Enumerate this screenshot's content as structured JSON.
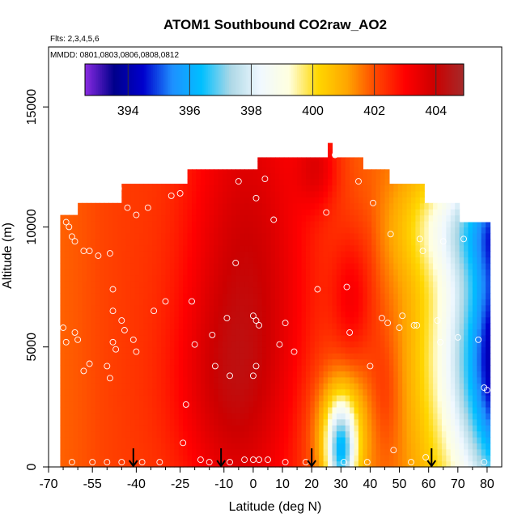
{
  "chart_data": {
    "type": "heatmap",
    "title": "ATOM1 Southbound CO2raw_AO2",
    "subtitle_flights": "Flts: 2,3,4,5,6",
    "subtitle_dates": "MMDD: 0801,0803,0806,0808,0812",
    "xlabel": "Latitude (deg N)",
    "ylabel": "Altitude (m)",
    "xlim": [
      -70,
      85
    ],
    "ylim": [
      0,
      17500
    ],
    "x_ticks": [
      -70,
      -55,
      -40,
      -25,
      -10,
      0,
      10,
      20,
      30,
      40,
      50,
      60,
      70,
      80
    ],
    "x_tick_labels": [
      "-70",
      "-55",
      "-40",
      "-25",
      "-10",
      "0",
      "10",
      "20",
      "30",
      "40",
      "50",
      "60",
      "70",
      "80"
    ],
    "x_minor_ticks": [
      -65,
      -60,
      -50,
      -45,
      -35,
      -30,
      -20,
      -15,
      -5,
      5,
      15,
      25,
      35,
      45,
      55,
      65,
      75
    ],
    "y_ticks": [
      0,
      5000,
      10000,
      15000
    ],
    "y_tick_labels": [
      "0",
      "5000",
      "10000",
      "15000"
    ],
    "colorbar": {
      "range": [
        392.6,
        404.9
      ],
      "ticks": [
        394,
        396,
        398,
        400,
        402,
        404
      ],
      "tick_labels": [
        "394",
        "396",
        "398",
        "400",
        "402",
        "404"
      ],
      "colors": [
        "#8a2be2",
        "#00008b",
        "#0000cd",
        "#1e90ff",
        "#00bfff",
        "#add8e6",
        "#f0f8ff",
        "#ffffe0",
        "#ffd700",
        "#ffa500",
        "#ff4500",
        "#ff0000",
        "#cc0000",
        "#a52a2a"
      ]
    },
    "arrows_latitude": [
      -41,
      -11,
      20,
      61
    ],
    "field": {
      "description": "CO2 (ppm) as a function of latitude and altitude",
      "domain_lat": [
        -66,
        80
      ],
      "domain_alt": [
        0,
        13500
      ],
      "ceiling_points": [
        [
          -66,
          10500
        ],
        [
          -60,
          10500
        ],
        [
          -60,
          11000
        ],
        [
          -45,
          11000
        ],
        [
          -45,
          11800
        ],
        [
          -22,
          11800
        ],
        [
          -22,
          12400
        ],
        [
          2,
          12400
        ],
        [
          2,
          12900
        ],
        [
          26,
          12900
        ],
        [
          26,
          13500
        ],
        [
          27,
          13500
        ],
        [
          27,
          12900
        ],
        [
          37,
          12900
        ],
        [
          37,
          12400
        ],
        [
          46,
          12400
        ],
        [
          46,
          11800
        ],
        [
          58,
          11800
        ],
        [
          58,
          11000
        ],
        [
          71,
          11000
        ],
        [
          71,
          10200
        ],
        [
          79,
          10200
        ]
      ]
    },
    "sample_points": [
      [
        -64,
        10200
      ],
      [
        -63,
        10000
      ],
      [
        -62,
        9600
      ],
      [
        -61,
        9400
      ],
      [
        -58,
        9000
      ],
      [
        -56,
        9000
      ],
      [
        -53,
        8800
      ],
      [
        -49,
        8900
      ],
      [
        -48,
        7400
      ],
      [
        -48,
        6500
      ],
      [
        -48,
        5200
      ],
      [
        -47,
        4900
      ],
      [
        -45,
        6100
      ],
      [
        -44,
        5700
      ],
      [
        -41,
        5300
      ],
      [
        -40,
        4800
      ],
      [
        -49,
        3700
      ],
      [
        -50,
        4200
      ],
      [
        -56,
        4300
      ],
      [
        -58,
        4000
      ],
      [
        -60,
        5300
      ],
      [
        -64,
        5200
      ],
      [
        -65,
        5800
      ],
      [
        -61,
        5600
      ],
      [
        -43,
        10800
      ],
      [
        -40,
        10500
      ],
      [
        -36,
        10800
      ],
      [
        -28,
        11300
      ],
      [
        -25,
        11400
      ],
      [
        -46,
        11600
      ],
      [
        -30,
        6900
      ],
      [
        -34,
        6500
      ],
      [
        -21,
        6900
      ],
      [
        -20,
        5100
      ],
      [
        -14,
        5500
      ],
      [
        -13,
        4200
      ],
      [
        -9,
        6200
      ],
      [
        -8,
        3800
      ],
      [
        -6,
        8500
      ],
      [
        -5,
        11900
      ],
      [
        0,
        6300
      ],
      [
        1,
        6100
      ],
      [
        2,
        5900
      ],
      [
        1,
        4200
      ],
      [
        0,
        3800
      ],
      [
        1,
        11200
      ],
      [
        4,
        12000
      ],
      [
        7,
        10300
      ],
      [
        9,
        5100
      ],
      [
        11,
        6000
      ],
      [
        14,
        4800
      ],
      [
        22,
        7400
      ],
      [
        25,
        10600
      ],
      [
        28,
        13000
      ],
      [
        32,
        7500
      ],
      [
        33,
        5600
      ],
      [
        36,
        11900
      ],
      [
        40,
        4200
      ],
      [
        41,
        11000
      ],
      [
        44,
        6200
      ],
      [
        46,
        6000
      ],
      [
        47,
        9700
      ],
      [
        50,
        5800
      ],
      [
        51,
        6300
      ],
      [
        55,
        5900
      ],
      [
        56,
        5900
      ],
      [
        57,
        9500
      ],
      [
        58,
        9000
      ],
      [
        63,
        6100
      ],
      [
        64,
        5200
      ],
      [
        65,
        9400
      ],
      [
        70,
        5400
      ],
      [
        72,
        9500
      ],
      [
        77,
        5300
      ],
      [
        79,
        3300
      ],
      [
        80,
        3200
      ],
      [
        -62,
        200
      ],
      [
        -55,
        200
      ],
      [
        -50,
        200
      ],
      [
        -45,
        200
      ],
      [
        -38,
        200
      ],
      [
        -32,
        200
      ],
      [
        -24,
        1000
      ],
      [
        -18,
        300
      ],
      [
        -15,
        200
      ],
      [
        -8,
        200
      ],
      [
        -3,
        300
      ],
      [
        0,
        300
      ],
      [
        2,
        300
      ],
      [
        5,
        300
      ],
      [
        11,
        200
      ],
      [
        18,
        200
      ],
      [
        31,
        200
      ],
      [
        39,
        200
      ],
      [
        48,
        700
      ],
      [
        54,
        200
      ],
      [
        59,
        400
      ],
      [
        79,
        200
      ],
      [
        -23,
        2600
      ]
    ]
  }
}
